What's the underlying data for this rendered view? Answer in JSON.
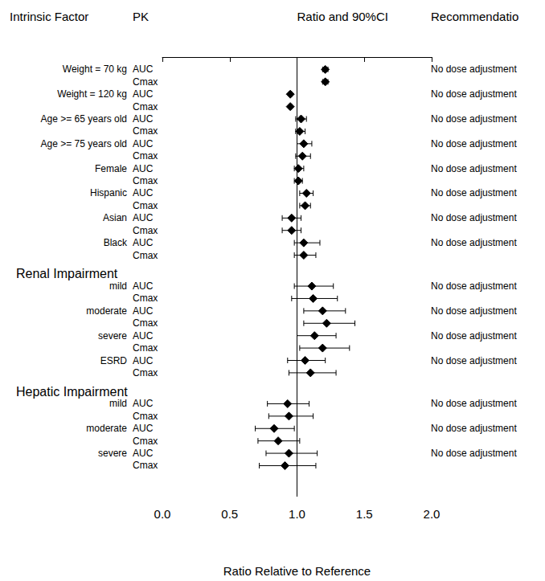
{
  "chart_data": {
    "type": "forest",
    "columns": [
      "Intrinsic Factor",
      "PK",
      "Ratio and 90%CI",
      "Recommendatio"
    ],
    "x_label": "Ratio Relative to Reference",
    "xlim": [
      0,
      2
    ],
    "xticks": [
      {
        "value": 0,
        "label": "0.0"
      },
      0.5,
      {
        "value": 1,
        "label": "1.0"
      },
      1.5,
      {
        "value": 2,
        "label": "2.0"
      }
    ],
    "reference_line": 1,
    "grid": false,
    "color": "#000000",
    "marker": "diamond",
    "rows": [
      {
        "factor": "Weight = 70 kg",
        "pk": "AUC",
        "value": 1.21,
        "ci_low": 1.19,
        "ci_high": 1.23,
        "recommendation": "No dose adjustment"
      },
      {
        "pk": "Cmax",
        "value": 1.21,
        "ci_low": 1.19,
        "ci_high": 1.23
      },
      {
        "factor": "Weight = 120 kg",
        "pk": "AUC",
        "value": 0.95,
        "ci_low": 0.94,
        "ci_high": 0.96,
        "recommendation": "No dose adjustment"
      },
      {
        "pk": "Cmax",
        "value": 0.95,
        "ci_low": 0.94,
        "ci_high": 0.96
      },
      {
        "factor": "Age >= 65 years old",
        "pk": "AUC",
        "value": 1.03,
        "ci_low": 0.99,
        "ci_high": 1.07,
        "recommendation": "No dose adjustment"
      },
      {
        "pk": "Cmax",
        "value": 1.02,
        "ci_low": 0.99,
        "ci_high": 1.06
      },
      {
        "factor": "Age >= 75 years old",
        "pk": "AUC",
        "value": 1.05,
        "ci_low": 1.0,
        "ci_high": 1.11,
        "recommendation": "No dose adjustment"
      },
      {
        "pk": "Cmax",
        "value": 1.04,
        "ci_low": 0.99,
        "ci_high": 1.1
      },
      {
        "factor": "Female",
        "pk": "AUC",
        "value": 1.01,
        "ci_low": 0.98,
        "ci_high": 1.05,
        "recommendation": "No dose adjustment"
      },
      {
        "pk": "Cmax",
        "value": 1.01,
        "ci_low": 0.98,
        "ci_high": 1.04
      },
      {
        "factor": "Hispanic",
        "pk": "AUC",
        "value": 1.07,
        "ci_low": 1.02,
        "ci_high": 1.12,
        "recommendation": "No dose adjustment"
      },
      {
        "pk": "Cmax",
        "value": 1.06,
        "ci_low": 1.02,
        "ci_high": 1.1
      },
      {
        "factor": "Asian",
        "pk": "AUC",
        "value": 0.96,
        "ci_low": 0.89,
        "ci_high": 1.03,
        "recommendation": "No dose adjustment"
      },
      {
        "pk": "Cmax",
        "value": 0.96,
        "ci_low": 0.89,
        "ci_high": 1.03
      },
      {
        "factor": "Black",
        "pk": "AUC",
        "value": 1.05,
        "ci_low": 0.98,
        "ci_high": 1.17,
        "recommendation": "No dose adjustment"
      },
      {
        "pk": "Cmax",
        "value": 1.05,
        "ci_low": 0.98,
        "ci_high": 1.14
      },
      {
        "heading": "Renal Impairment"
      },
      {
        "factor": "mild",
        "pk": "AUC",
        "value": 1.11,
        "ci_low": 0.98,
        "ci_high": 1.27,
        "recommendation": "No dose adjustment"
      },
      {
        "pk": "Cmax",
        "value": 1.12,
        "ci_low": 0.96,
        "ci_high": 1.3
      },
      {
        "factor": "moderate",
        "pk": "AUC",
        "value": 1.19,
        "ci_low": 1.05,
        "ci_high": 1.36,
        "recommendation": "No dose adjustment"
      },
      {
        "pk": "Cmax",
        "value": 1.22,
        "ci_low": 1.05,
        "ci_high": 1.43
      },
      {
        "factor": "severe",
        "pk": "AUC",
        "value": 1.13,
        "ci_low": 1.0,
        "ci_high": 1.29,
        "recommendation": "No dose adjustment"
      },
      {
        "pk": "Cmax",
        "value": 1.19,
        "ci_low": 1.02,
        "ci_high": 1.39
      },
      {
        "factor": "ESRD",
        "pk": "AUC",
        "value": 1.06,
        "ci_low": 0.93,
        "ci_high": 1.21,
        "recommendation": "No dose adjustment"
      },
      {
        "pk": "Cmax",
        "value": 1.1,
        "ci_low": 0.94,
        "ci_high": 1.29
      },
      {
        "heading": "Hepatic Impairment"
      },
      {
        "factor": "mild",
        "pk": "AUC",
        "value": 0.93,
        "ci_low": 0.78,
        "ci_high": 1.09,
        "recommendation": "No dose adjustment"
      },
      {
        "pk": "Cmax",
        "value": 0.94,
        "ci_low": 0.79,
        "ci_high": 1.12
      },
      {
        "factor": "moderate",
        "pk": "AUC",
        "value": 0.83,
        "ci_low": 0.69,
        "ci_high": 0.98,
        "recommendation": "No dose adjustment"
      },
      {
        "pk": "Cmax",
        "value": 0.86,
        "ci_low": 0.71,
        "ci_high": 1.02
      },
      {
        "factor": "severe",
        "pk": "AUC",
        "value": 0.94,
        "ci_low": 0.77,
        "ci_high": 1.15,
        "recommendation": "No dose adjustment"
      },
      {
        "pk": "Cmax",
        "value": 0.91,
        "ci_low": 0.72,
        "ci_high": 1.14
      }
    ]
  }
}
